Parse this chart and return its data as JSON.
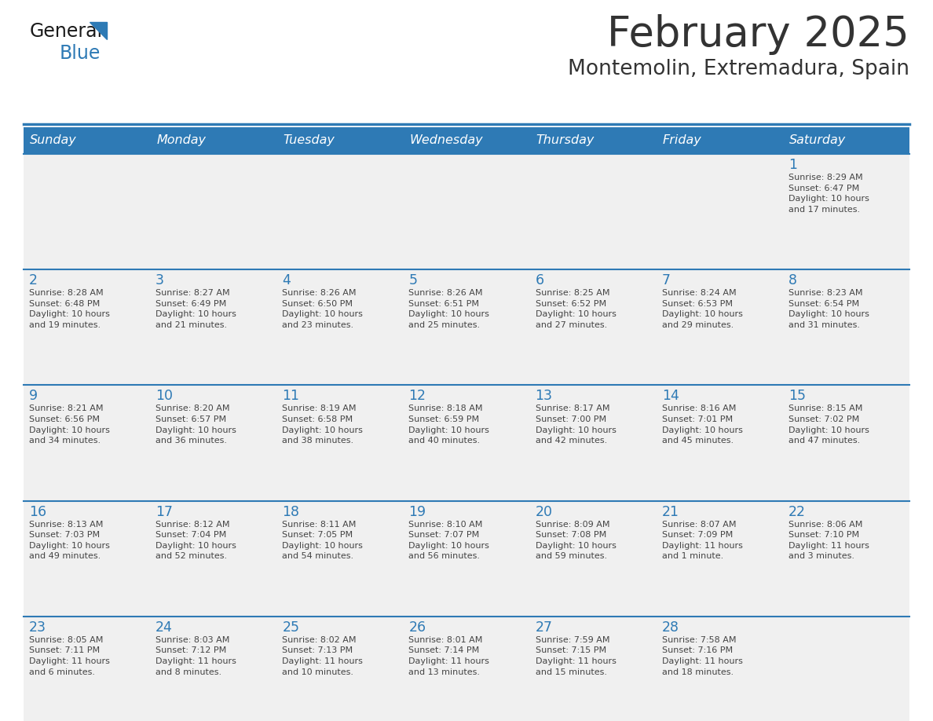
{
  "title": "February 2025",
  "subtitle": "Montemolin, Extremadura, Spain",
  "header_bg": "#2E7AB5",
  "header_text_color": "#FFFFFF",
  "cell_bg_light": "#F0F0F0",
  "text_color": "#333333",
  "day_number_color": "#2E7AB5",
  "separator_color": "#2E7AB5",
  "weekdays": [
    "Sunday",
    "Monday",
    "Tuesday",
    "Wednesday",
    "Thursday",
    "Friday",
    "Saturday"
  ],
  "days": [
    {
      "day": 1,
      "col": 6,
      "row": 0,
      "sunrise": "8:29 AM",
      "sunset": "6:47 PM",
      "daylight": "10 hours and 17 minutes."
    },
    {
      "day": 2,
      "col": 0,
      "row": 1,
      "sunrise": "8:28 AM",
      "sunset": "6:48 PM",
      "daylight": "10 hours and 19 minutes."
    },
    {
      "day": 3,
      "col": 1,
      "row": 1,
      "sunrise": "8:27 AM",
      "sunset": "6:49 PM",
      "daylight": "10 hours and 21 minutes."
    },
    {
      "day": 4,
      "col": 2,
      "row": 1,
      "sunrise": "8:26 AM",
      "sunset": "6:50 PM",
      "daylight": "10 hours and 23 minutes."
    },
    {
      "day": 5,
      "col": 3,
      "row": 1,
      "sunrise": "8:26 AM",
      "sunset": "6:51 PM",
      "daylight": "10 hours and 25 minutes."
    },
    {
      "day": 6,
      "col": 4,
      "row": 1,
      "sunrise": "8:25 AM",
      "sunset": "6:52 PM",
      "daylight": "10 hours and 27 minutes."
    },
    {
      "day": 7,
      "col": 5,
      "row": 1,
      "sunrise": "8:24 AM",
      "sunset": "6:53 PM",
      "daylight": "10 hours and 29 minutes."
    },
    {
      "day": 8,
      "col": 6,
      "row": 1,
      "sunrise": "8:23 AM",
      "sunset": "6:54 PM",
      "daylight": "10 hours and 31 minutes."
    },
    {
      "day": 9,
      "col": 0,
      "row": 2,
      "sunrise": "8:21 AM",
      "sunset": "6:56 PM",
      "daylight": "10 hours and 34 minutes."
    },
    {
      "day": 10,
      "col": 1,
      "row": 2,
      "sunrise": "8:20 AM",
      "sunset": "6:57 PM",
      "daylight": "10 hours and 36 minutes."
    },
    {
      "day": 11,
      "col": 2,
      "row": 2,
      "sunrise": "8:19 AM",
      "sunset": "6:58 PM",
      "daylight": "10 hours and 38 minutes."
    },
    {
      "day": 12,
      "col": 3,
      "row": 2,
      "sunrise": "8:18 AM",
      "sunset": "6:59 PM",
      "daylight": "10 hours and 40 minutes."
    },
    {
      "day": 13,
      "col": 4,
      "row": 2,
      "sunrise": "8:17 AM",
      "sunset": "7:00 PM",
      "daylight": "10 hours and 42 minutes."
    },
    {
      "day": 14,
      "col": 5,
      "row": 2,
      "sunrise": "8:16 AM",
      "sunset": "7:01 PM",
      "daylight": "10 hours and 45 minutes."
    },
    {
      "day": 15,
      "col": 6,
      "row": 2,
      "sunrise": "8:15 AM",
      "sunset": "7:02 PM",
      "daylight": "10 hours and 47 minutes."
    },
    {
      "day": 16,
      "col": 0,
      "row": 3,
      "sunrise": "8:13 AM",
      "sunset": "7:03 PM",
      "daylight": "10 hours and 49 minutes."
    },
    {
      "day": 17,
      "col": 1,
      "row": 3,
      "sunrise": "8:12 AM",
      "sunset": "7:04 PM",
      "daylight": "10 hours and 52 minutes."
    },
    {
      "day": 18,
      "col": 2,
      "row": 3,
      "sunrise": "8:11 AM",
      "sunset": "7:05 PM",
      "daylight": "10 hours and 54 minutes."
    },
    {
      "day": 19,
      "col": 3,
      "row": 3,
      "sunrise": "8:10 AM",
      "sunset": "7:07 PM",
      "daylight": "10 hours and 56 minutes."
    },
    {
      "day": 20,
      "col": 4,
      "row": 3,
      "sunrise": "8:09 AM",
      "sunset": "7:08 PM",
      "daylight": "10 hours and 59 minutes."
    },
    {
      "day": 21,
      "col": 5,
      "row": 3,
      "sunrise": "8:07 AM",
      "sunset": "7:09 PM",
      "daylight": "11 hours and 1 minute."
    },
    {
      "day": 22,
      "col": 6,
      "row": 3,
      "sunrise": "8:06 AM",
      "sunset": "7:10 PM",
      "daylight": "11 hours and 3 minutes."
    },
    {
      "day": 23,
      "col": 0,
      "row": 4,
      "sunrise": "8:05 AM",
      "sunset": "7:11 PM",
      "daylight": "11 hours and 6 minutes."
    },
    {
      "day": 24,
      "col": 1,
      "row": 4,
      "sunrise": "8:03 AM",
      "sunset": "7:12 PM",
      "daylight": "11 hours and 8 minutes."
    },
    {
      "day": 25,
      "col": 2,
      "row": 4,
      "sunrise": "8:02 AM",
      "sunset": "7:13 PM",
      "daylight": "11 hours and 10 minutes."
    },
    {
      "day": 26,
      "col": 3,
      "row": 4,
      "sunrise": "8:01 AM",
      "sunset": "7:14 PM",
      "daylight": "11 hours and 13 minutes."
    },
    {
      "day": 27,
      "col": 4,
      "row": 4,
      "sunrise": "7:59 AM",
      "sunset": "7:15 PM",
      "daylight": "11 hours and 15 minutes."
    },
    {
      "day": 28,
      "col": 5,
      "row": 4,
      "sunrise": "7:58 AM",
      "sunset": "7:16 PM",
      "daylight": "11 hours and 18 minutes."
    }
  ],
  "num_rows": 5,
  "num_cols": 7
}
